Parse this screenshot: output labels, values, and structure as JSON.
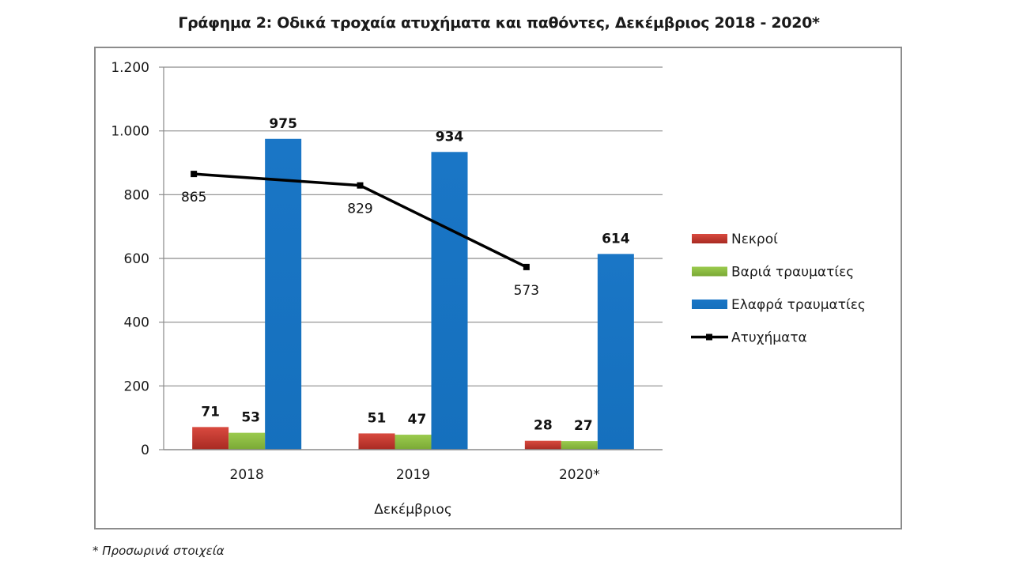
{
  "chart_data": {
    "type": "bar",
    "title": "Γράφημα 2: Οδικά τροχαία ατυχήματα και παθόντες, Δεκέμβριος 2018 - 2020*",
    "xlabel": "Δεκέμβριος",
    "ylabel": "",
    "categories": [
      "2018",
      "2019",
      "2020*"
    ],
    "ylim": [
      0,
      1200
    ],
    "yticks": [
      0,
      200,
      400,
      600,
      800,
      1000,
      1200
    ],
    "ytick_labels": [
      "0",
      "200",
      "400",
      "600",
      "800",
      "1.000",
      "1.200"
    ],
    "grid": true,
    "legend_position": "right",
    "series": [
      {
        "name": "Νεκροί",
        "kind": "bar",
        "color": "#c0392b",
        "values": [
          71,
          51,
          28
        ],
        "labels_bold": true
      },
      {
        "name": "Βαριά τραυματίες",
        "kind": "bar",
        "color": "#8dbf3f",
        "values": [
          53,
          47,
          27
        ],
        "labels_bold": true
      },
      {
        "name": "Ελαφρά τραυματίες",
        "kind": "bar",
        "color": "#1874c4",
        "values": [
          975,
          934,
          614
        ],
        "labels_bold": true
      },
      {
        "name": "Ατυχήματα",
        "kind": "line",
        "color": "#000000",
        "values": [
          865,
          829,
          573
        ],
        "labels_bold": false
      }
    ],
    "footnote": "* Προσωρινά στοιχεία"
  }
}
